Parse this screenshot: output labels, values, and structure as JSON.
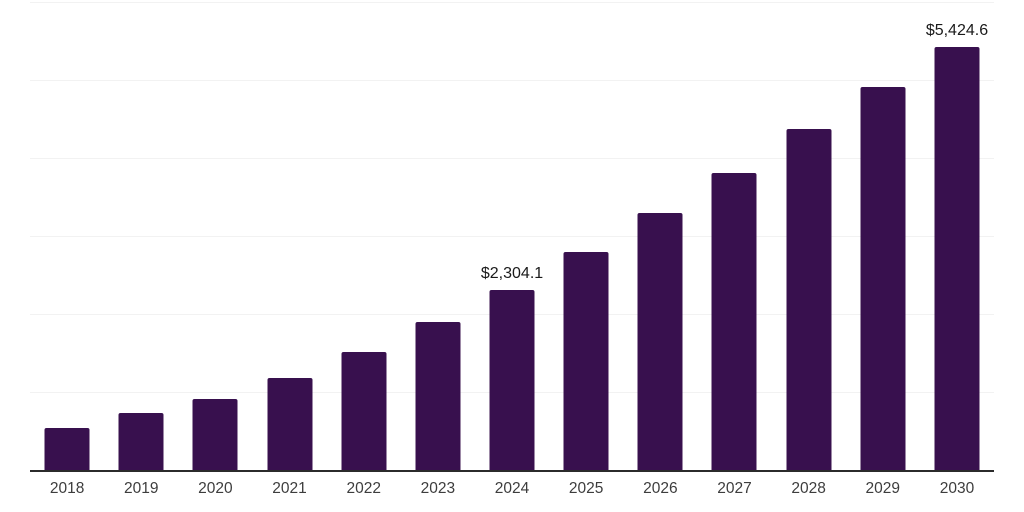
{
  "chart_data": {
    "type": "bar",
    "title": "",
    "xlabel": "",
    "ylabel": "",
    "categories": [
      "2018",
      "2019",
      "2020",
      "2021",
      "2022",
      "2023",
      "2024",
      "2025",
      "2026",
      "2027",
      "2028",
      "2029",
      "2030"
    ],
    "values": [
      545,
      735,
      905,
      1180,
      1510,
      1900,
      2304.1,
      2790,
      3300,
      3810,
      4370,
      4915,
      5424.6
    ],
    "data_labels": [
      "",
      "",
      "",
      "",
      "",
      "",
      "$2,304.1",
      "",
      "",
      "",
      "",
      "",
      "$5,424.6"
    ],
    "ylim": [
      0,
      6000
    ],
    "gridline_interval": 1000,
    "grid": true,
    "legend": false,
    "y_tick_labels_visible": false
  },
  "style": {
    "bar_color": "#38104e",
    "gridline_color": "#f2f2f2",
    "axis_line_color": "#2b2b2b",
    "data_label_color": "#1a1a1a",
    "x_tick_label_color": "#3d3d3d",
    "background_color": "#ffffff"
  }
}
